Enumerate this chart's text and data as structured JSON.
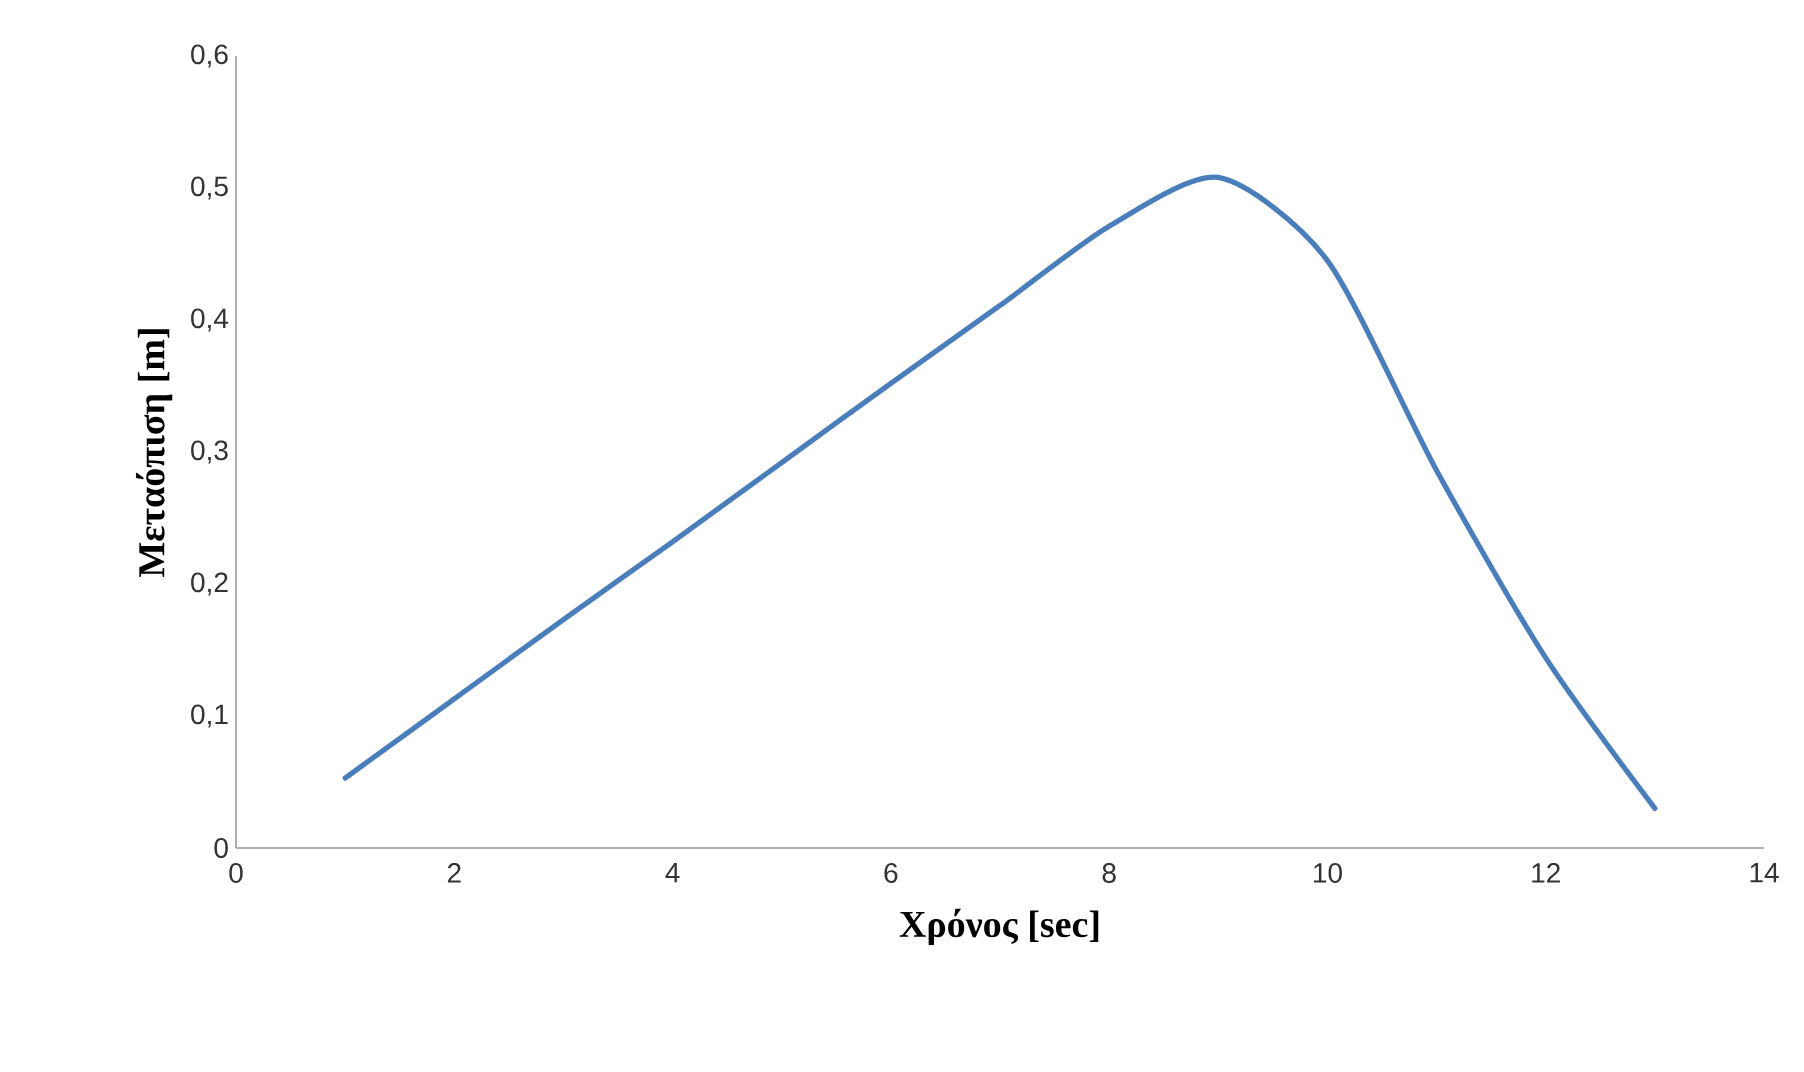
{
  "chart_data": {
    "type": "line",
    "xlabel": "Χρόνος [sec]",
    "ylabel": "Μεταόπιση [m]",
    "x": [
      1,
      2,
      3,
      4,
      5,
      6,
      7,
      8,
      9,
      10,
      11,
      12,
      13
    ],
    "series": [
      {
        "color": "#4a7ebb",
        "values": [
          0.053,
          0.113,
          0.173,
          0.232,
          0.292,
          0.352,
          0.411,
          0.471,
          0.508,
          0.445,
          0.286,
          0.144,
          0.03
        ]
      }
    ],
    "xlim": [
      0,
      14
    ],
    "xticks": [
      0,
      2,
      4,
      6,
      8,
      10,
      12,
      14
    ],
    "ylim": [
      0,
      0.6
    ],
    "yticks": [
      0,
      {
        "value": 0.1,
        "label": "0,1"
      },
      {
        "value": 0.2,
        "label": "0,2"
      },
      {
        "value": 0.3,
        "label": "0,3"
      },
      {
        "value": 0.4,
        "label": "0,4"
      },
      {
        "value": 0.5,
        "label": "0,5"
      },
      {
        "value": 0.6,
        "label": "0,6"
      }
    ],
    "marker": "none",
    "line_style": "solid"
  }
}
